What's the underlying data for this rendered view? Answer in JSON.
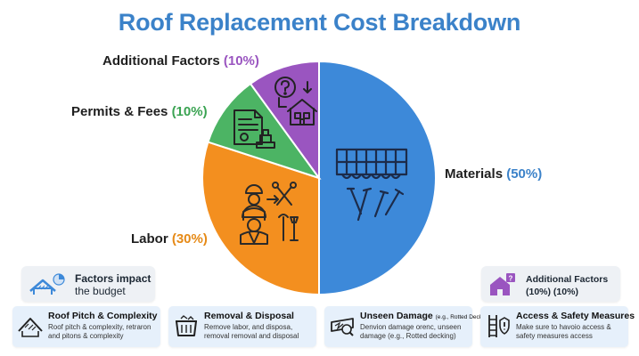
{
  "title": "Roof Replacement Cost Breakdown",
  "chart_data": {
    "type": "pie",
    "title": "Roof Replacement Cost Breakdown",
    "slices": [
      {
        "label": "Materials",
        "value": 50,
        "pct_text": "(50%)",
        "color": "#3d89d9",
        "pct_color": "#3b82c9"
      },
      {
        "label": "Labor",
        "value": 30,
        "pct_text": "(30%)",
        "color": "#f38f1f",
        "pct_color": "#e68a17"
      },
      {
        "label": "Permits & Fees",
        "value": 10,
        "pct_text": "(10%)",
        "color": "#4cb464",
        "pct_color": "#3aa352"
      },
      {
        "label": "Additional Factors",
        "value": 10,
        "pct_text": "(10%)",
        "color": "#9a55c0",
        "pct_color": "#9a55c0"
      }
    ]
  },
  "slice_icons": {
    "materials": "shingles-and-nails-icon",
    "labor": "workers-and-tools-icon",
    "permits": "permit-document-stamp-icon",
    "additional": "question-house-icon"
  },
  "factors_box": {
    "line1": "Factors impact",
    "line2": "the budget",
    "icon": "roof-chart-icon"
  },
  "additional_box": {
    "line1": "Additional Factors",
    "line2": "(10%) (10%)",
    "icon": "house-question-icon"
  },
  "cards": [
    {
      "title": "Roof Pitch & Complexity",
      "note": "",
      "body": "Roof pitch & complexity, retraron and pitons & complexity",
      "icon": "steep-roof-icon"
    },
    {
      "title": "Removal & Disposal",
      "note": "",
      "body": "Remove labor, and disposa, removal removal and disposal",
      "icon": "dumpster-icon"
    },
    {
      "title": "Unseen Damage",
      "note": "(e.g., Rotted Decking)",
      "body": "Denvion damage orenc, unseen damage (e.g., Rotted decking)",
      "icon": "damaged-wood-icon"
    },
    {
      "title": "Access & Safety Measures",
      "note": "",
      "body": "Make sure to havoio access & safety measures access",
      "icon": "ladder-safety-icon"
    }
  ]
}
